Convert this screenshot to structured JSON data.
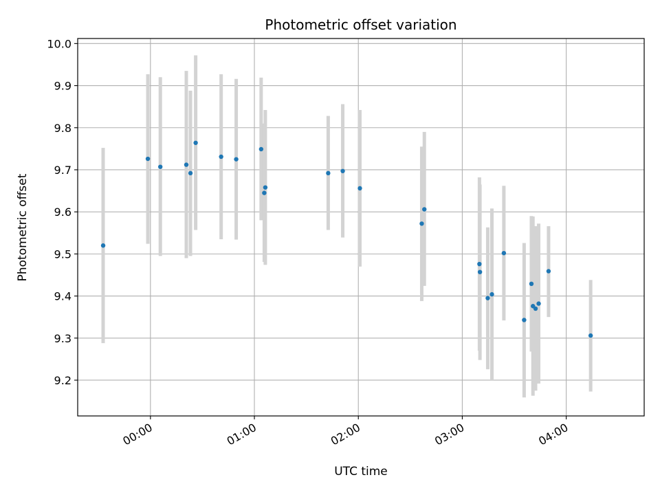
{
  "chart_data": {
    "type": "scatter",
    "title": "Photometric offset variation",
    "xlabel": "UTC time",
    "ylabel": "Photometric offset",
    "x_unit": "hours (UTC)",
    "xlim": [
      -0.7,
      4.75
    ],
    "ylim": [
      9.115,
      10.012
    ],
    "grid": true,
    "point_color": "#1f77b4",
    "errorbar_color": "#d3d3d3",
    "x_ticks": [
      {
        "value": 0,
        "label": "00:00"
      },
      {
        "value": 1,
        "label": "01:00"
      },
      {
        "value": 2,
        "label": "02:00"
      },
      {
        "value": 3,
        "label": "03:00"
      },
      {
        "value": 4,
        "label": "04:00"
      }
    ],
    "y_ticks": [
      {
        "value": 9.2,
        "label": "9.2"
      },
      {
        "value": 9.3,
        "label": "9.3"
      },
      {
        "value": 9.4,
        "label": "9.4"
      },
      {
        "value": 9.5,
        "label": "9.5"
      },
      {
        "value": 9.6,
        "label": "9.6"
      },
      {
        "value": 9.7,
        "label": "9.7"
      },
      {
        "value": 9.8,
        "label": "9.8"
      },
      {
        "value": 9.9,
        "label": "9.9"
      },
      {
        "value": 10.0,
        "label": "10.0"
      }
    ],
    "points": [
      {
        "x": -0.455,
        "y": 9.52,
        "low": 9.288,
        "high": 9.752
      },
      {
        "x": -0.025,
        "y": 9.726,
        "low": 9.524,
        "high": 9.927
      },
      {
        "x": 0.095,
        "y": 9.707,
        "low": 9.495,
        "high": 9.92
      },
      {
        "x": 0.345,
        "y": 9.712,
        "low": 9.49,
        "high": 9.935
      },
      {
        "x": 0.385,
        "y": 9.692,
        "low": 9.495,
        "high": 9.888
      },
      {
        "x": 0.435,
        "y": 9.764,
        "low": 9.557,
        "high": 9.972
      },
      {
        "x": 0.68,
        "y": 9.731,
        "low": 9.535,
        "high": 9.927
      },
      {
        "x": 0.825,
        "y": 9.725,
        "low": 9.534,
        "high": 9.916
      },
      {
        "x": 1.065,
        "y": 9.749,
        "low": 9.58,
        "high": 9.919
      },
      {
        "x": 1.095,
        "y": 9.645,
        "low": 9.481,
        "high": 9.81
      },
      {
        "x": 1.105,
        "y": 9.658,
        "low": 9.474,
        "high": 9.842
      },
      {
        "x": 1.71,
        "y": 9.692,
        "low": 9.557,
        "high": 9.828
      },
      {
        "x": 1.85,
        "y": 9.697,
        "low": 9.539,
        "high": 9.856
      },
      {
        "x": 2.015,
        "y": 9.656,
        "low": 9.47,
        "high": 9.842
      },
      {
        "x": 2.61,
        "y": 9.572,
        "low": 9.388,
        "high": 9.755
      },
      {
        "x": 2.635,
        "y": 9.606,
        "low": 9.424,
        "high": 9.79
      },
      {
        "x": 3.165,
        "y": 9.476,
        "low": 9.27,
        "high": 9.682
      },
      {
        "x": 3.17,
        "y": 9.457,
        "low": 9.248,
        "high": 9.665
      },
      {
        "x": 3.245,
        "y": 9.395,
        "low": 9.226,
        "high": 9.563
      },
      {
        "x": 3.285,
        "y": 9.404,
        "low": 9.2,
        "high": 9.608
      },
      {
        "x": 3.4,
        "y": 9.502,
        "low": 9.342,
        "high": 9.662
      },
      {
        "x": 3.595,
        "y": 9.343,
        "low": 9.159,
        "high": 9.526
      },
      {
        "x": 3.665,
        "y": 9.429,
        "low": 9.268,
        "high": 9.59
      },
      {
        "x": 3.68,
        "y": 9.376,
        "low": 9.163,
        "high": 9.589
      },
      {
        "x": 3.705,
        "y": 9.37,
        "low": 9.175,
        "high": 9.566
      },
      {
        "x": 3.735,
        "y": 9.382,
        "low": 9.192,
        "high": 9.572
      },
      {
        "x": 3.83,
        "y": 9.459,
        "low": 9.35,
        "high": 9.566
      },
      {
        "x": 4.235,
        "y": 9.306,
        "low": 9.173,
        "high": 9.438
      }
    ]
  }
}
